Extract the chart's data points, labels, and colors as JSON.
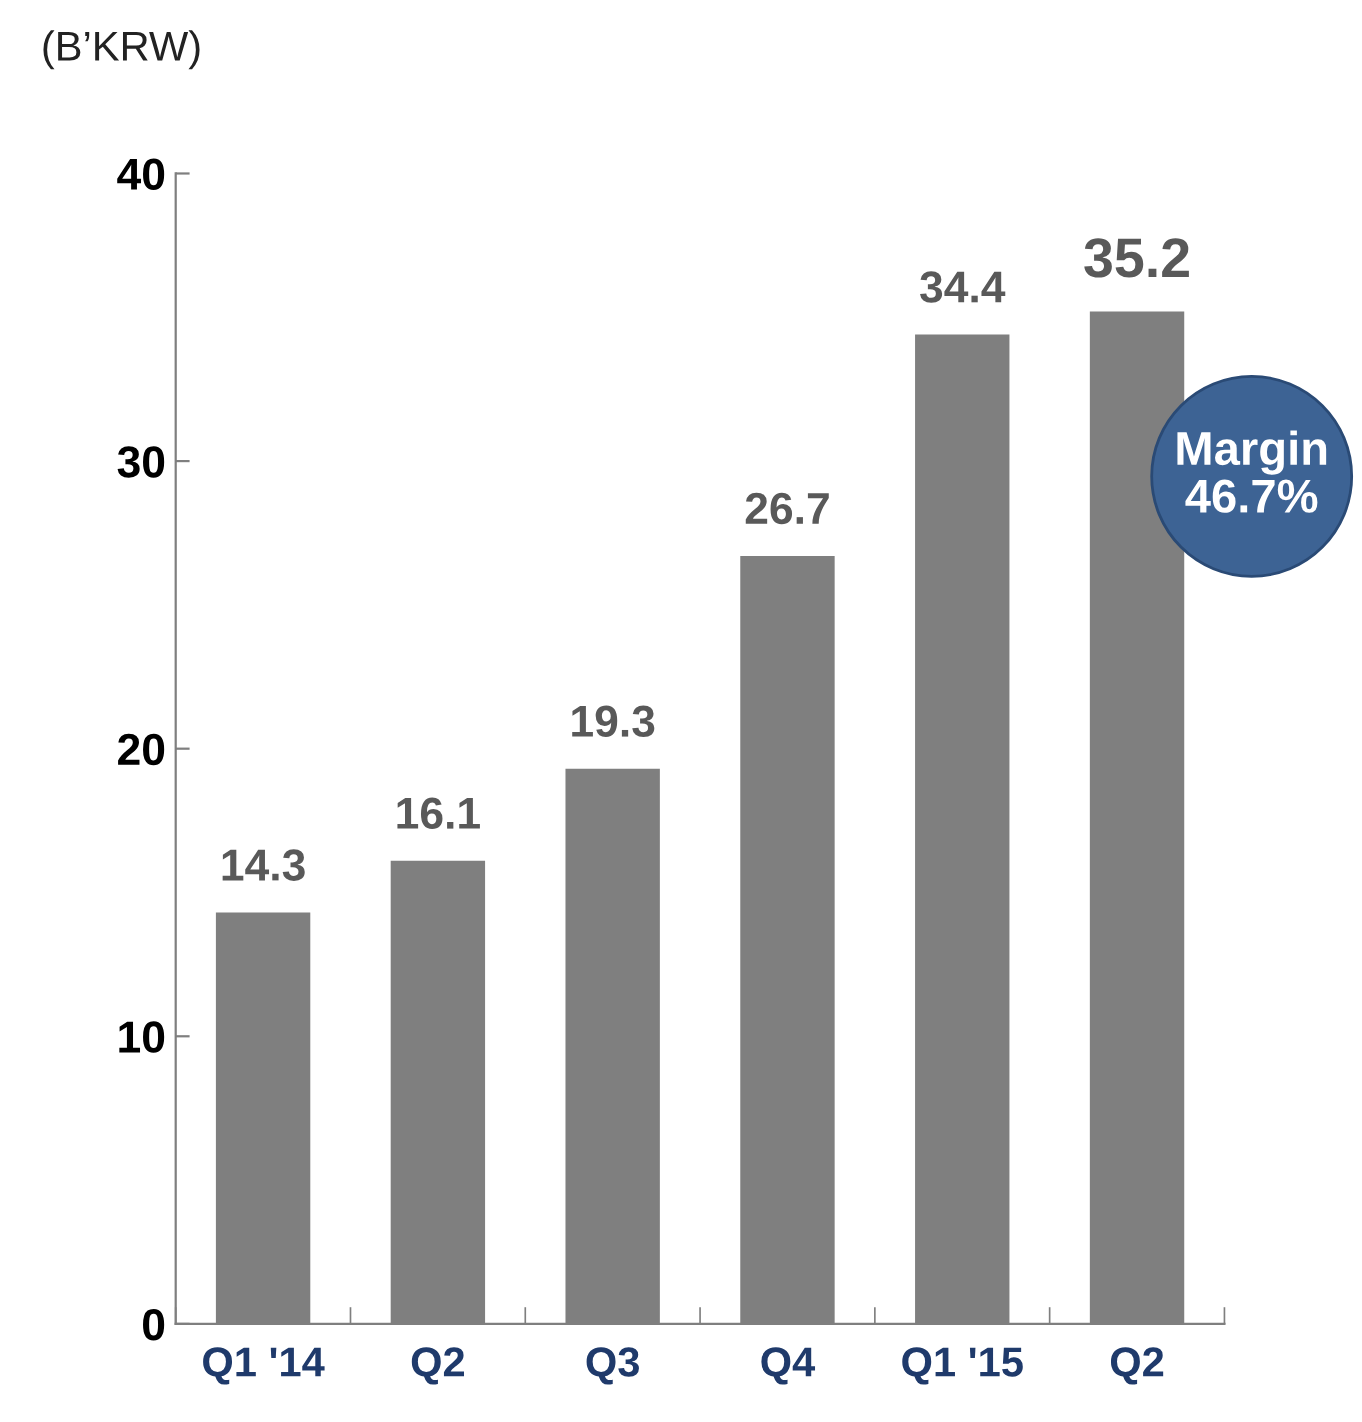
{
  "chart_data": {
    "type": "bar",
    "ylabel": "(B’KRW)",
    "categories": [
      "Q1 '14",
      "Q2",
      "Q3",
      "Q4",
      "Q1 '15",
      "Q2"
    ],
    "values": [
      14.3,
      16.1,
      19.3,
      26.7,
      34.4,
      35.2
    ],
    "color": "#7f7f7f",
    "ylim": [
      0,
      40
    ],
    "yticks": [
      0,
      10,
      20,
      30,
      40
    ],
    "grid": false,
    "data_labels": true,
    "annotations": [
      "Margin\n46.7%"
    ]
  }
}
